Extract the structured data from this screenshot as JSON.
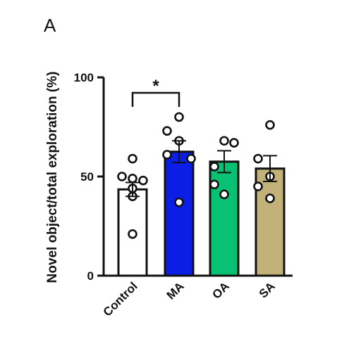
{
  "panel_label": "A",
  "chart_data": {
    "type": "bar",
    "ylabel": "Novel object/total exploration (%)",
    "xlabel": "",
    "ylim": [
      0,
      100
    ],
    "yticks": [
      0,
      50,
      100
    ],
    "categories": [
      "Control",
      "MA",
      "OA",
      "SA"
    ],
    "values": [
      43.5,
      62.5,
      57.5,
      54
    ],
    "sem": [
      3.5,
      5.5,
      5.5,
      6.5
    ],
    "colors": [
      "#ffffff",
      "#0a1ee6",
      "#08c172",
      "#c2b27a"
    ],
    "points": [
      [
        59,
        50,
        49,
        48,
        44,
        40,
        21
      ],
      [
        80,
        73,
        68,
        61,
        59,
        37
      ],
      [
        68,
        67,
        55,
        46,
        41
      ],
      [
        76,
        59,
        50,
        45,
        39
      ]
    ],
    "significance": {
      "from": "Control",
      "to": "MA",
      "label": "*"
    }
  }
}
